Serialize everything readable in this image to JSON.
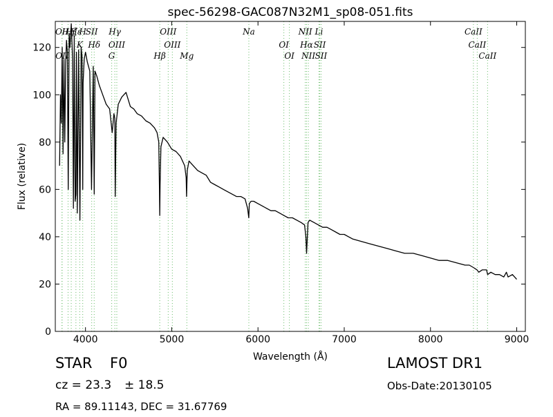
{
  "chart_data": {
    "type": "line",
    "title": "spec-56298-GAC087N32M1_sp08-051.fits",
    "xlabel": "Wavelength (Å)",
    "ylabel": "Flux (relative)",
    "xlim": [
      3650,
      9100
    ],
    "ylim": [
      0,
      131
    ],
    "xticks": [
      4000,
      5000,
      6000,
      7000,
      8000,
      9000
    ],
    "yticks": [
      0,
      20,
      40,
      60,
      80,
      100,
      120
    ],
    "grid": false,
    "series": [
      {
        "color": "#000000",
        "x": [
          3700,
          3710,
          3720,
          3730,
          3740,
          3750,
          3760,
          3770,
          3780,
          3790,
          3800,
          3810,
          3820,
          3835,
          3850,
          3860,
          3870,
          3880,
          3889,
          3895,
          3905,
          3920,
          3935,
          3950,
          3960,
          3968,
          3972,
          3985,
          4000,
          4020,
          4050,
          4070,
          4090,
          4101,
          4110,
          4130,
          4160,
          4200,
          4240,
          4280,
          4310,
          4330,
          4340,
          4345,
          4355,
          4380,
          4420,
          4470,
          4520,
          4560,
          4600,
          4650,
          4700,
          4750,
          4800,
          4830,
          4850,
          4858,
          4861,
          4865,
          4875,
          4900,
          4950,
          5000,
          5050,
          5100,
          5150,
          5167,
          5172,
          5180,
          5200,
          5250,
          5300,
          5350,
          5400,
          5450,
          5500,
          5550,
          5600,
          5650,
          5700,
          5750,
          5800,
          5850,
          5880,
          5893,
          5900,
          5920,
          5950,
          6000,
          6050,
          6100,
          6150,
          6200,
          6250,
          6300,
          6350,
          6400,
          6450,
          6500,
          6540,
          6555,
          6563,
          6570,
          6580,
          6600,
          6650,
          6700,
          6750,
          6800,
          6850,
          6900,
          6950,
          7000,
          7050,
          7100,
          7200,
          7300,
          7400,
          7500,
          7600,
          7700,
          7800,
          7900,
          8000,
          8100,
          8200,
          8300,
          8400,
          8450,
          8498,
          8540,
          8560,
          8600,
          8650,
          8662,
          8700,
          8750,
          8800,
          8850,
          8880,
          8900,
          8950,
          9000
        ],
        "y": [
          70,
          100,
          88,
          120,
          75,
          115,
          80,
          113,
          123,
          118,
          60,
          126,
          120,
          130,
          115,
          52,
          125,
          55,
          58,
          118,
          50,
          119,
          47,
          120,
          116,
          60,
          105,
          115,
          118,
          114,
          110,
          60,
          112,
          58,
          110,
          108,
          104,
          100,
          96,
          94,
          84,
          92,
          90,
          57,
          88,
          96,
          99,
          101,
          95,
          94,
          92,
          91,
          89,
          88,
          86,
          84,
          80,
          60,
          49,
          62,
          78,
          82,
          80,
          77,
          76,
          74,
          70,
          65,
          57,
          68,
          72,
          70,
          68,
          67,
          66,
          63,
          62,
          61,
          60,
          59,
          58,
          57,
          57,
          56,
          52,
          48,
          54,
          55,
          55,
          54,
          53,
          52,
          51,
          51,
          50,
          49,
          48,
          48,
          47,
          46,
          45,
          40,
          33,
          38,
          46,
          47,
          46,
          45,
          44,
          44,
          43,
          42,
          41,
          41,
          40,
          39,
          38,
          37,
          36,
          35,
          34,
          33,
          33,
          32,
          31,
          30,
          30,
          29,
          28,
          28,
          27,
          26,
          25,
          26,
          26,
          24,
          25,
          24,
          24,
          23,
          25,
          23,
          24,
          22
        ]
      }
    ],
    "line_marks": [
      {
        "x": 3727,
        "labels": [
          "OII"
        ],
        "level": "top"
      },
      {
        "x": 3729,
        "labels": [
          "OII"
        ],
        "level": "low"
      },
      {
        "x": 3798,
        "labels": [
          "Hη"
        ],
        "level": "top"
      },
      {
        "x": 3835,
        "labels": [
          "Hζ"
        ],
        "level": "top"
      },
      {
        "x": 3889,
        "labels": [
          "Hε"
        ],
        "level": "top"
      },
      {
        "x": 3933,
        "labels": [
          "K"
        ],
        "level": "high"
      },
      {
        "x": 3968,
        "labels": [
          "H"
        ],
        "level": "top"
      },
      {
        "x": 4072,
        "labels": [
          "SII"
        ],
        "level": "top"
      },
      {
        "x": 4101,
        "labels": [
          "Hδ"
        ],
        "level": "high"
      },
      {
        "x": 4304,
        "labels": [
          "G"
        ],
        "level": "low"
      },
      {
        "x": 4340,
        "labels": [
          "Hγ"
        ],
        "level": "top"
      },
      {
        "x": 4363,
        "labels": [
          "OIII"
        ],
        "level": "high"
      },
      {
        "x": 4861,
        "labels": [
          "Hβ"
        ],
        "level": "low"
      },
      {
        "x": 4959,
        "labels": [
          "OIII"
        ],
        "level": "top"
      },
      {
        "x": 5007,
        "labels": [
          "OIII"
        ],
        "level": "high"
      },
      {
        "x": 5175,
        "labels": [
          "Mg"
        ],
        "level": "low"
      },
      {
        "x": 5894,
        "labels": [
          "Na"
        ],
        "level": "top"
      },
      {
        "x": 6300,
        "labels": [
          "OI"
        ],
        "level": "high"
      },
      {
        "x": 6364,
        "labels": [
          "OI"
        ],
        "level": "low"
      },
      {
        "x": 6548,
        "labels": [
          "NII"
        ],
        "level": "top"
      },
      {
        "x": 6563,
        "labels": [
          "Hα"
        ],
        "level": "high"
      },
      {
        "x": 6584,
        "labels": [
          "NII"
        ],
        "level": "low"
      },
      {
        "x": 6707,
        "labels": [
          "Li"
        ],
        "level": "top"
      },
      {
        "x": 6716,
        "labels": [
          "SII"
        ],
        "level": "high"
      },
      {
        "x": 6731,
        "labels": [
          "SII"
        ],
        "level": "low"
      },
      {
        "x": 8498,
        "labels": [
          "CaII"
        ],
        "level": "top"
      },
      {
        "x": 8542,
        "labels": [
          "CaII"
        ],
        "level": "high"
      },
      {
        "x": 8662,
        "labels": [
          "CaII"
        ],
        "level": "low"
      }
    ],
    "line_mark_color": "#66bb66",
    "axis_color": "#000000"
  },
  "info": {
    "object_class": "STAR",
    "subclass": "F0",
    "survey": "LAMOST DR1",
    "cz": "cz = 23.3",
    "cz_err": "± 18.5",
    "obs_date": "Obs-Date:20130105",
    "coords": "RA = 89.11143, DEC = 31.67769"
  }
}
